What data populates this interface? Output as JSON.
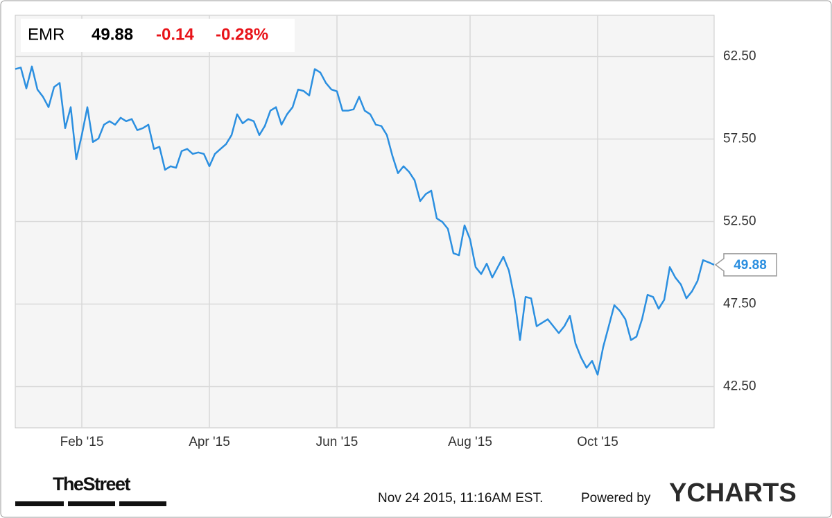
{
  "chart_data": {
    "type": "line",
    "header": {
      "symbol": "EMR",
      "change": "-0.14",
      "change_pct": "-0.28%"
    },
    "categories": [
      null,
      null,
      null,
      null,
      null,
      null,
      null,
      null,
      null,
      null,
      null,
      null,
      "Feb '15",
      null,
      null,
      null,
      null,
      null,
      null,
      null,
      null,
      null,
      null,
      null,
      null,
      null,
      null,
      null,
      null,
      null,
      null,
      null,
      null,
      null,
      null,
      "Apr '15",
      null,
      null,
      null,
      null,
      null,
      null,
      null,
      null,
      null,
      null,
      null,
      null,
      null,
      null,
      null,
      null,
      null,
      null,
      null,
      null,
      null,
      null,
      "Jun '15",
      null,
      null,
      null,
      null,
      null,
      null,
      null,
      null,
      null,
      null,
      null,
      null,
      null,
      null,
      null,
      null,
      null,
      null,
      null,
      null,
      null,
      null,
      null,
      "Aug '15",
      null,
      null,
      null,
      null,
      null,
      null,
      null,
      null,
      null,
      null,
      null,
      null,
      null,
      null,
      null,
      null,
      null,
      null,
      null,
      null,
      null,
      null,
      "Oct '15",
      null,
      null,
      null,
      null,
      null,
      null,
      null,
      null,
      null,
      null,
      null,
      null,
      null,
      null,
      null,
      null,
      null,
      null,
      null,
      null,
      null
    ],
    "values": [
      61.74,
      61.83,
      60.57,
      61.9,
      60.5,
      60.06,
      59.43,
      60.65,
      60.9,
      58.16,
      59.43,
      56.27,
      57.74,
      59.43,
      57.32,
      57.53,
      58.37,
      58.58,
      58.37,
      58.79,
      58.58,
      58.71,
      58.04,
      58.16,
      58.37,
      56.9,
      57.03,
      55.64,
      55.85,
      55.76,
      56.77,
      56.9,
      56.6,
      56.69,
      56.6,
      55.85,
      56.6,
      56.9,
      57.19,
      57.74,
      59.0,
      58.45,
      58.71,
      58.58,
      57.74,
      58.29,
      59.22,
      59.43,
      58.37,
      59.0,
      59.43,
      60.5,
      60.41,
      60.14,
      61.74,
      61.53,
      60.9,
      60.5,
      60.39,
      59.22,
      59.22,
      59.3,
      60.06,
      59.22,
      59.0,
      58.37,
      58.29,
      57.74,
      56.48,
      55.43,
      55.85,
      55.51,
      55.0,
      53.74,
      54.16,
      54.37,
      52.69,
      52.48,
      52.06,
      50.58,
      50.46,
      52.27,
      51.42,
      49.74,
      49.32,
      49.95,
      49.11,
      49.74,
      50.37,
      49.53,
      47.85,
      45.32,
      47.93,
      47.85,
      46.16,
      46.37,
      46.58,
      46.16,
      45.74,
      46.16,
      46.79,
      45.11,
      44.27,
      43.64,
      44.06,
      43.22,
      44.9,
      46.16,
      47.43,
      47.09,
      46.58,
      45.32,
      45.53,
      46.58,
      48.06,
      47.93,
      47.22,
      47.76,
      49.74,
      49.11,
      48.69,
      47.85,
      48.27,
      48.9,
      50.16,
      50.03,
      49.88
    ],
    "color": "#2b8fe0",
    "ylim": [
      40,
      65
    ],
    "yticks": [
      {
        "value": 42.5,
        "label": "42.50"
      },
      {
        "value": 47.5,
        "label": "47.50"
      },
      {
        "value": 52.5,
        "label": "52.50"
      },
      {
        "value": 57.5,
        "label": "57.50"
      },
      {
        "value": 62.5,
        "label": "62.50"
      }
    ],
    "grid": true,
    "source": "TheStreet",
    "timestamp": "Nov 24 2015, 11:16AM EST.",
    "powered_by": "Powered by",
    "brand": "YCHARTS"
  }
}
